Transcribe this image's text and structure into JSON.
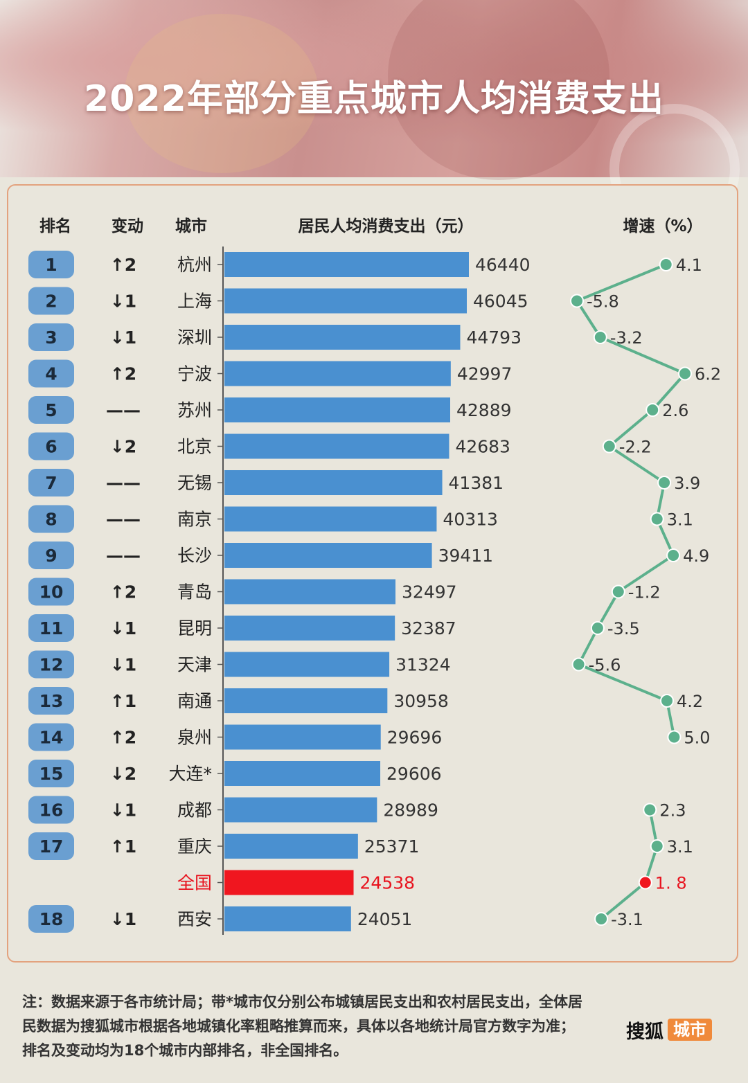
{
  "title": "2022年部分重点城市人均消费支出",
  "headers": {
    "rank": "排名",
    "change": "变动",
    "city": "城市",
    "spending": "居民人均消费支出（元）",
    "growth": "增速（%）"
  },
  "colors": {
    "bar": "#4a90d0",
    "national_bar": "#f0161f",
    "rank_badge": "#6a9fd1",
    "growth_line": "#5cb08c",
    "national_text": "#e8131e",
    "panel_border": "#e3a27e"
  },
  "chart_data": {
    "type": "bar",
    "orientation": "horizontal",
    "xlim": [
      0,
      46440
    ],
    "rows": [
      {
        "rank": "1",
        "change": "↑2",
        "city": "杭州",
        "value": 46440,
        "value_label": "46440",
        "growth": 4.1,
        "growth_label": "4.1"
      },
      {
        "rank": "2",
        "change": "↓1",
        "city": "上海",
        "value": 46045,
        "value_label": "46045",
        "growth": -5.8,
        "growth_label": "-5.8"
      },
      {
        "rank": "3",
        "change": "↓1",
        "city": "深圳",
        "value": 44793,
        "value_label": "44793",
        "growth": -3.2,
        "growth_label": "-3.2"
      },
      {
        "rank": "4",
        "change": "↑2",
        "city": "宁波",
        "value": 42997,
        "value_label": "42997",
        "growth": 6.2,
        "growth_label": "6.2"
      },
      {
        "rank": "5",
        "change": "——",
        "city": "苏州",
        "value": 42889,
        "value_label": "42889",
        "growth": 2.6,
        "growth_label": "2.6"
      },
      {
        "rank": "6",
        "change": "↓2",
        "city": "北京",
        "value": 42683,
        "value_label": "42683",
        "growth": -2.2,
        "growth_label": "-2.2"
      },
      {
        "rank": "7",
        "change": "——",
        "city": "无锡",
        "value": 41381,
        "value_label": "41381",
        "growth": 3.9,
        "growth_label": "3.9"
      },
      {
        "rank": "8",
        "change": "——",
        "city": "南京",
        "value": 40313,
        "value_label": "40313",
        "growth": 3.1,
        "growth_label": "3.1"
      },
      {
        "rank": "9",
        "change": "——",
        "city": "长沙",
        "value": 39411,
        "value_label": "39411",
        "growth": 4.9,
        "growth_label": "4.9"
      },
      {
        "rank": "10",
        "change": "↑2",
        "city": "青岛",
        "value": 32497,
        "value_label": "32497",
        "growth": -1.2,
        "growth_label": "-1.2"
      },
      {
        "rank": "11",
        "change": "↓1",
        "city": "昆明",
        "value": 32387,
        "value_label": "32387",
        "growth": -3.5,
        "growth_label": "-3.5"
      },
      {
        "rank": "12",
        "change": "↓1",
        "city": "天津",
        "value": 31324,
        "value_label": "31324",
        "growth": -5.6,
        "growth_label": "-5.6"
      },
      {
        "rank": "13",
        "change": "↑1",
        "city": "南通",
        "value": 30958,
        "value_label": "30958",
        "growth": 4.2,
        "growth_label": "4.2"
      },
      {
        "rank": "14",
        "change": "↑2",
        "city": "泉州",
        "value": 29696,
        "value_label": "29696",
        "growth": 5.0,
        "growth_label": "5.0"
      },
      {
        "rank": "15",
        "change": "↓2",
        "city": "大连*",
        "value": 29606,
        "value_label": "29606",
        "growth": null,
        "growth_label": ""
      },
      {
        "rank": "16",
        "change": "↓1",
        "city": "成都",
        "value": 28989,
        "value_label": "28989",
        "growth": 2.3,
        "growth_label": "2.3"
      },
      {
        "rank": "17",
        "change": "↑1",
        "city": "重庆",
        "value": 25371,
        "value_label": "25371",
        "growth": 3.1,
        "growth_label": "3.1"
      },
      {
        "rank": "",
        "change": "",
        "city": "全国",
        "value": 24538,
        "value_label": "24538",
        "growth": 1.8,
        "growth_label": "1. 8",
        "national": true
      },
      {
        "rank": "18",
        "change": "↓1",
        "city": "西安",
        "value": 24051,
        "value_label": "24051",
        "growth": -3.1,
        "growth_label": "-3.1"
      }
    ]
  },
  "footer": {
    "note": "注：数据来源于各市统计局；带*城市仅分别公布城镇居民支出和农村居民支出，全体居民数据为搜狐城市根据各地城镇化率粗略推算而来，具体以各地统计局官方数字为准；排名及变动均为18个城市内部排名，非全国排名。",
    "logo_brand": "搜狐",
    "logo_tag": "城市"
  }
}
